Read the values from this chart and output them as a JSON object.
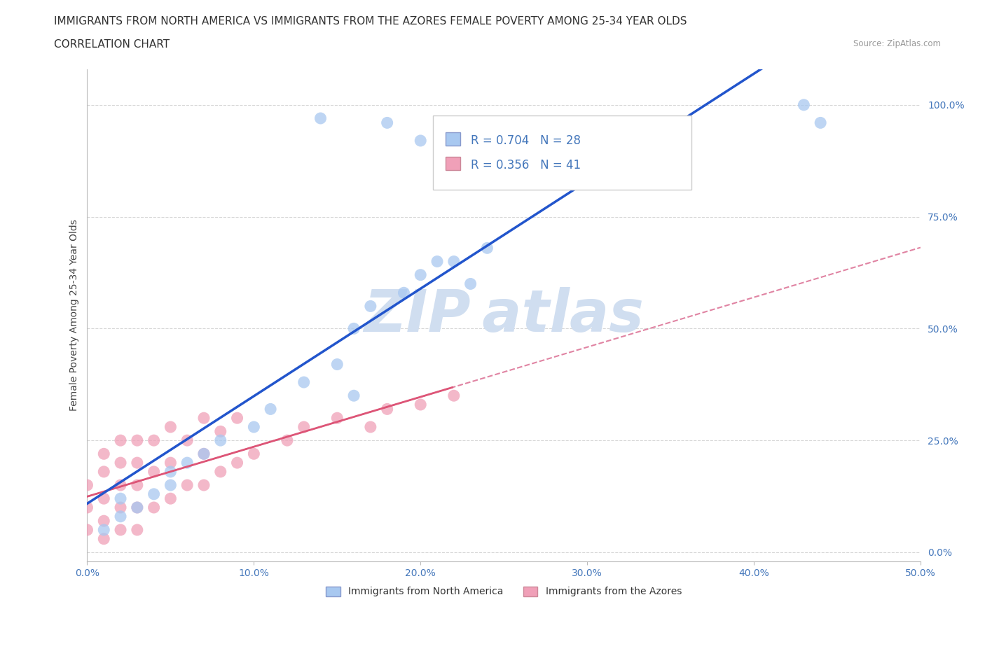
{
  "title_line1": "IMMIGRANTS FROM NORTH AMERICA VS IMMIGRANTS FROM THE AZORES FEMALE POVERTY AMONG 25-34 YEAR OLDS",
  "title_line2": "CORRELATION CHART",
  "source": "Source: ZipAtlas.com",
  "ylabel": "Female Poverty Among 25-34 Year Olds",
  "xlim": [
    0.0,
    0.5
  ],
  "ylim": [
    -0.02,
    1.08
  ],
  "xticks": [
    0.0,
    0.1,
    0.2,
    0.3,
    0.4,
    0.5
  ],
  "xtick_labels": [
    "0.0%",
    "10.0%",
    "20.0%",
    "30.0%",
    "40.0%",
    "50.0%"
  ],
  "ytick_positions": [
    0.0,
    0.25,
    0.5,
    0.75,
    1.0
  ],
  "ytick_labels": [
    "0.0%",
    "25.0%",
    "50.0%",
    "75.0%",
    "100.0%"
  ],
  "blue_color": "#A8C8F0",
  "pink_color": "#F0A0B8",
  "blue_line_color": "#2255CC",
  "pink_line_color": "#DD5577",
  "pink_dash_color": "#DD7799",
  "watermark_color": "#D0DEF0",
  "R_blue": 0.704,
  "N_blue": 28,
  "R_pink": 0.356,
  "N_pink": 41,
  "legend_label_blue": "Immigrants from North America",
  "legend_label_pink": "Immigrants from the Azores",
  "blue_scatter_x": [
    0.01,
    0.02,
    0.02,
    0.03,
    0.04,
    0.05,
    0.05,
    0.06,
    0.07,
    0.08,
    0.1,
    0.11,
    0.13,
    0.15,
    0.16,
    0.16,
    0.17,
    0.19,
    0.2,
    0.21,
    0.22,
    0.23,
    0.24,
    0.14,
    0.18,
    0.2,
    0.43,
    0.44
  ],
  "blue_scatter_y": [
    0.05,
    0.08,
    0.12,
    0.1,
    0.13,
    0.15,
    0.18,
    0.2,
    0.22,
    0.25,
    0.28,
    0.32,
    0.38,
    0.42,
    0.35,
    0.5,
    0.55,
    0.58,
    0.62,
    0.65,
    0.65,
    0.6,
    0.68,
    0.97,
    0.96,
    0.92,
    1.0,
    0.96
  ],
  "pink_scatter_x": [
    0.0,
    0.0,
    0.0,
    0.01,
    0.01,
    0.01,
    0.01,
    0.01,
    0.02,
    0.02,
    0.02,
    0.02,
    0.02,
    0.03,
    0.03,
    0.03,
    0.03,
    0.03,
    0.04,
    0.04,
    0.04,
    0.05,
    0.05,
    0.05,
    0.06,
    0.06,
    0.07,
    0.07,
    0.07,
    0.08,
    0.08,
    0.09,
    0.09,
    0.1,
    0.12,
    0.13,
    0.15,
    0.17,
    0.18,
    0.2,
    0.22
  ],
  "pink_scatter_y": [
    0.05,
    0.1,
    0.15,
    0.03,
    0.07,
    0.12,
    0.18,
    0.22,
    0.05,
    0.1,
    0.15,
    0.2,
    0.25,
    0.05,
    0.1,
    0.15,
    0.2,
    0.25,
    0.1,
    0.18,
    0.25,
    0.12,
    0.2,
    0.28,
    0.15,
    0.25,
    0.15,
    0.22,
    0.3,
    0.18,
    0.27,
    0.2,
    0.3,
    0.22,
    0.25,
    0.28,
    0.3,
    0.28,
    0.32,
    0.33,
    0.35
  ],
  "background_color": "#FFFFFF",
  "grid_color": "#CCCCCC",
  "title_fontsize": 11,
  "axis_label_fontsize": 10,
  "tick_fontsize": 10,
  "tick_color": "#4477BB",
  "legend_fontsize": 12
}
